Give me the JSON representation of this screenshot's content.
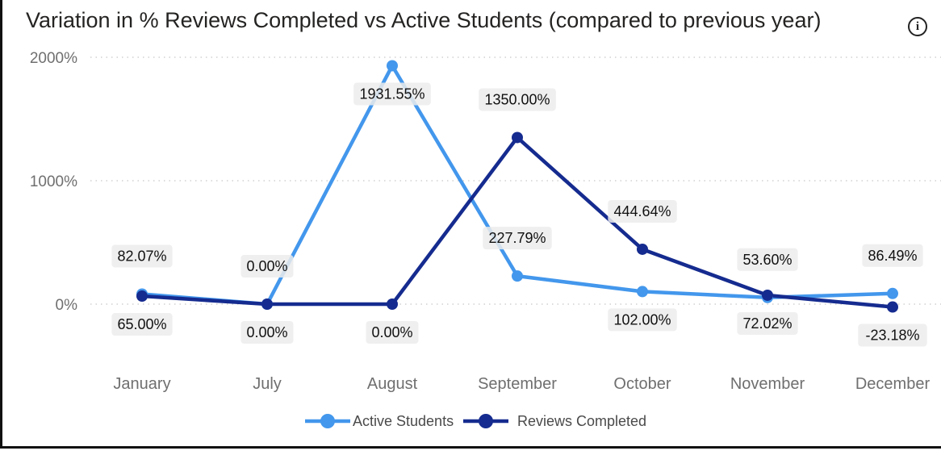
{
  "title": "Variation in % Reviews Completed vs Active Students (compared to previous year)",
  "info_icon": "info-icon",
  "info_glyph": "i",
  "chart_data": {
    "type": "line",
    "title": "Variation in % Reviews Completed vs Active Students (compared to previous year)",
    "categories": [
      "January",
      "July",
      "August",
      "September",
      "October",
      "November",
      "December"
    ],
    "series": [
      {
        "name": "Active Students",
        "color": "#4397ec",
        "values": [
          82.07,
          0.0,
          1931.55,
          227.79,
          102.0,
          53.6,
          86.49
        ],
        "labels": [
          "82.07%",
          "0.00%",
          "1931.55%",
          "227.79%",
          "102.00%",
          "53.60%",
          "86.49%"
        ]
      },
      {
        "name": "Reviews Completed",
        "color": "#152b8f",
        "values": [
          65.0,
          0.0,
          0.0,
          1350.0,
          444.64,
          72.02,
          -23.18
        ],
        "labels": [
          "65.00%",
          "0.00%",
          "0.00%",
          "1350.00%",
          "444.64%",
          "72.02%",
          "-23.18%"
        ]
      }
    ],
    "yticks": [
      0,
      1000,
      2000
    ],
    "ytick_labels": [
      "0%",
      "1000%",
      "2000%"
    ],
    "ylim": [
      -100,
      2050
    ],
    "grid": true,
    "legend_position": "bottom-center",
    "xlabel": "",
    "ylabel": ""
  }
}
